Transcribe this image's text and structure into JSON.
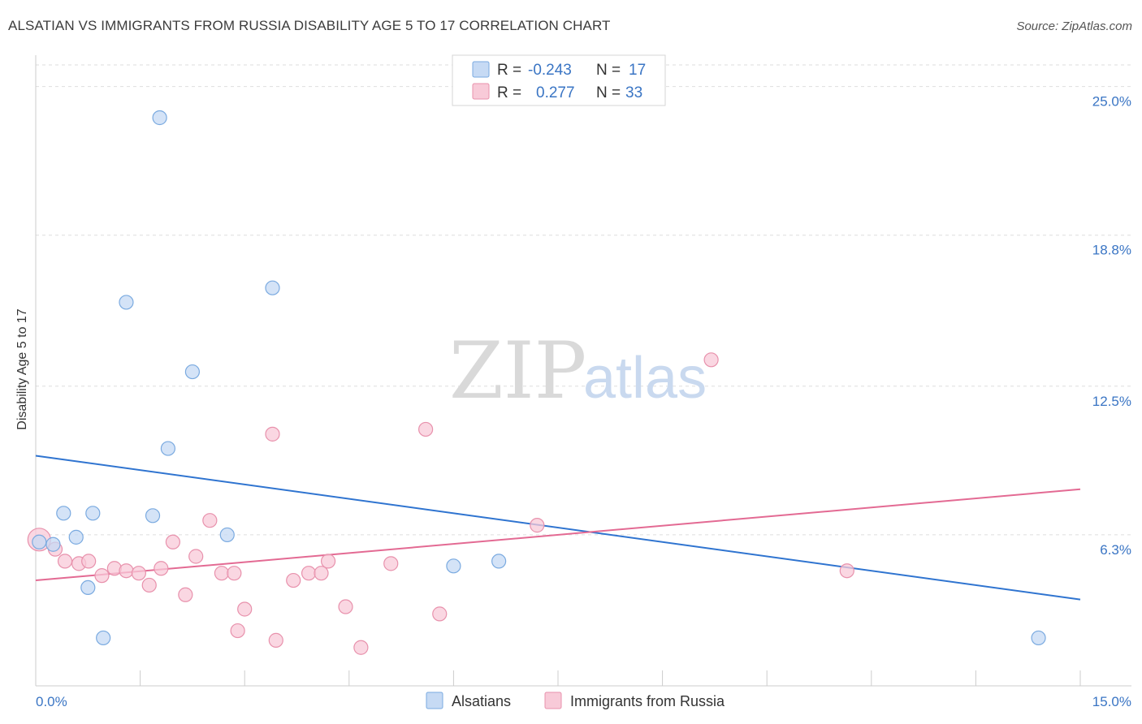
{
  "chart_data": {
    "type": "scatter",
    "title": "ALSATIAN VS IMMIGRANTS FROM RUSSIA DISABILITY AGE 5 TO 17 CORRELATION CHART",
    "source": "Source: ZipAtlas.com",
    "xlabel": "",
    "ylabel": "Disability Age 5 to 17",
    "xlim": [
      0,
      15
    ],
    "ylim": [
      0,
      25.9
    ],
    "x_tick_labels": {
      "min": "0.0%",
      "max": "15.0%"
    },
    "y_ticks": [
      {
        "value": 25.0,
        "label": "25.0%"
      },
      {
        "value": 18.8,
        "label": "18.8%"
      },
      {
        "value": 12.5,
        "label": "12.5%"
      },
      {
        "value": 6.3,
        "label": "6.3%"
      }
    ],
    "watermark": {
      "part1": "ZIP",
      "part2": "atlas"
    },
    "legend": {
      "rows": [
        {
          "r_label": "R =",
          "r_value": "-0.243",
          "n_label": "N =",
          "n_value": "17",
          "color": "#a9c8f0"
        },
        {
          "r_label": "R =",
          "r_value": "0.277",
          "n_label": "N =",
          "n_value": "33",
          "color": "#f5b8cb"
        }
      ]
    },
    "series": [
      {
        "name": "Alsatians",
        "color": "#7aaae0",
        "fill": "#c6daf4",
        "line_color": "#2f74d0",
        "trend": {
          "x0": 0,
          "y0": 9.6,
          "x1": 15,
          "y1": 3.6
        },
        "points": [
          [
            1.78,
            23.7
          ],
          [
            1.3,
            16.0
          ],
          [
            3.4,
            16.6
          ],
          [
            2.25,
            13.1
          ],
          [
            1.9,
            9.9
          ],
          [
            0.4,
            7.2
          ],
          [
            0.82,
            7.2
          ],
          [
            1.68,
            7.1
          ],
          [
            0.58,
            6.2
          ],
          [
            2.75,
            6.3
          ],
          [
            0.05,
            6.0
          ],
          [
            0.25,
            5.9
          ],
          [
            0.75,
            4.1
          ],
          [
            6.0,
            5.0
          ],
          [
            6.65,
            5.2
          ],
          [
            0.97,
            2.0
          ],
          [
            14.4,
            2.0
          ]
        ]
      },
      {
        "name": "Immigrants from Russia",
        "color": "#e891ac",
        "fill": "#f8cad8",
        "line_color": "#e36a93",
        "trend": {
          "x0": 0,
          "y0": 4.4,
          "x1": 15,
          "y1": 8.2
        },
        "points": [
          [
            0.05,
            6.1
          ],
          [
            0.28,
            5.7
          ],
          [
            0.42,
            5.2
          ],
          [
            0.62,
            5.1
          ],
          [
            0.76,
            5.2
          ],
          [
            0.95,
            4.6
          ],
          [
            1.13,
            4.9
          ],
          [
            1.3,
            4.8
          ],
          [
            1.48,
            4.7
          ],
          [
            1.63,
            4.2
          ],
          [
            1.8,
            4.9
          ],
          [
            1.97,
            6.0
          ],
          [
            2.15,
            3.8
          ],
          [
            2.3,
            5.4
          ],
          [
            2.5,
            6.9
          ],
          [
            2.67,
            4.7
          ],
          [
            2.85,
            4.7
          ],
          [
            3.0,
            3.2
          ],
          [
            2.9,
            2.3
          ],
          [
            3.4,
            10.5
          ],
          [
            3.45,
            1.9
          ],
          [
            3.7,
            4.4
          ],
          [
            3.92,
            4.7
          ],
          [
            4.1,
            4.7
          ],
          [
            4.2,
            5.2
          ],
          [
            4.45,
            3.3
          ],
          [
            4.67,
            1.6
          ],
          [
            5.1,
            5.1
          ],
          [
            5.6,
            10.7
          ],
          [
            5.8,
            3.0
          ],
          [
            7.2,
            6.7
          ],
          [
            9.7,
            13.6
          ],
          [
            11.65,
            4.8
          ]
        ]
      }
    ],
    "bottom_legend": [
      "Alsatians",
      "Immigrants from Russia"
    ]
  }
}
